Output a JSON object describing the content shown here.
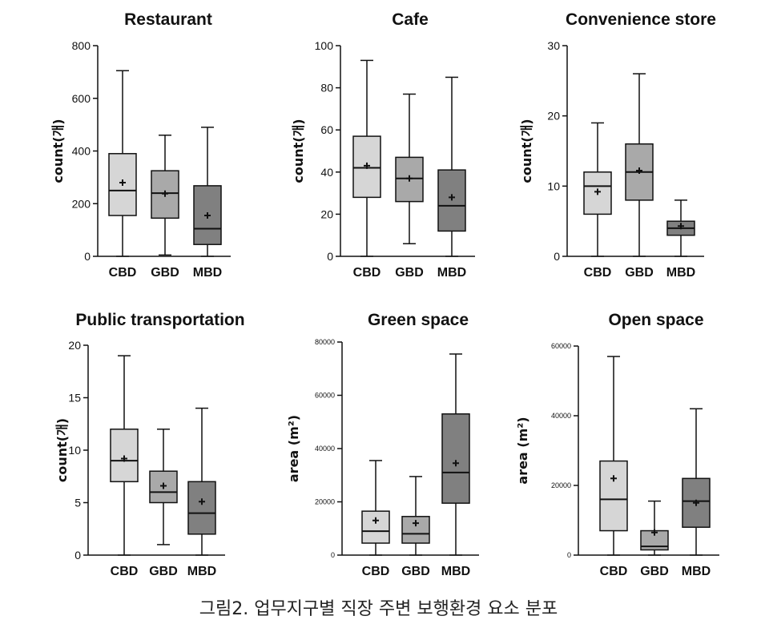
{
  "caption": "그림2. 업무지구별 직장 주변 보행환경 요소 분포",
  "colors": {
    "CBD": "#d6d6d6",
    "GBD": "#a9a9a9",
    "MBD": "#808080",
    "line": "#111111"
  },
  "chart_data": [
    {
      "type": "boxplot",
      "title": "Restaurant",
      "ylabel": "count(개)",
      "ylim": [
        0,
        800
      ],
      "yticks": [
        0,
        200,
        400,
        600,
        800
      ],
      "categories": [
        "CBD",
        "GBD",
        "MBD"
      ],
      "boxes": [
        {
          "category": "CBD",
          "min": 0,
          "q1": 155,
          "median": 250,
          "q3": 390,
          "max": 705,
          "mean": 280
        },
        {
          "category": "GBD",
          "min": 5,
          "q1": 145,
          "median": 240,
          "q3": 325,
          "max": 460,
          "mean": 238
        },
        {
          "category": "MBD",
          "min": 0,
          "q1": 45,
          "median": 105,
          "q3": 268,
          "max": 490,
          "mean": 155
        }
      ]
    },
    {
      "type": "boxplot",
      "title": "Cafe",
      "ylabel": "count(개)",
      "ylim": [
        0,
        100
      ],
      "yticks": [
        0,
        20,
        40,
        60,
        80,
        100
      ],
      "categories": [
        "CBD",
        "GBD",
        "MBD"
      ],
      "boxes": [
        {
          "category": "CBD",
          "min": 0,
          "q1": 28,
          "median": 42,
          "q3": 57,
          "max": 93,
          "mean": 43
        },
        {
          "category": "GBD",
          "min": 6,
          "q1": 26,
          "median": 37,
          "q3": 47,
          "max": 77,
          "mean": 37
        },
        {
          "category": "MBD",
          "min": 0,
          "q1": 12,
          "median": 24,
          "q3": 41,
          "max": 85,
          "mean": 28
        }
      ]
    },
    {
      "type": "boxplot",
      "title": "Convenience store",
      "ylabel": "count(개)",
      "ylim": [
        0,
        30
      ],
      "yticks": [
        0,
        10,
        20,
        30
      ],
      "categories": [
        "CBD",
        "GBD",
        "MBD"
      ],
      "boxes": [
        {
          "category": "CBD",
          "min": 0,
          "q1": 6,
          "median": 10,
          "q3": 12,
          "max": 19,
          "mean": 9.2
        },
        {
          "category": "GBD",
          "min": 0,
          "q1": 8,
          "median": 12,
          "q3": 16,
          "max": 26,
          "mean": 12.2
        },
        {
          "category": "MBD",
          "min": 0,
          "q1": 3,
          "median": 4,
          "q3": 5,
          "max": 8,
          "mean": 4.3
        }
      ]
    },
    {
      "type": "boxplot",
      "title": "Public transportation",
      "ylabel": "count(개)",
      "ylim": [
        0,
        20
      ],
      "yticks": [
        0,
        5,
        10,
        15,
        20
      ],
      "categories": [
        "CBD",
        "GBD",
        "MBD"
      ],
      "boxes": [
        {
          "category": "CBD",
          "min": 0,
          "q1": 7,
          "median": 9,
          "q3": 12,
          "max": 19,
          "mean": 9.2
        },
        {
          "category": "GBD",
          "min": 1,
          "q1": 5,
          "median": 6,
          "q3": 8,
          "max": 12,
          "mean": 6.6
        },
        {
          "category": "MBD",
          "min": 0,
          "q1": 2,
          "median": 4,
          "q3": 7,
          "max": 14,
          "mean": 5.1
        }
      ]
    },
    {
      "type": "boxplot",
      "title": "Green space",
      "ylabel": "area (m²)",
      "ylim": [
        0,
        80000
      ],
      "yticks": [
        0,
        20000,
        40000,
        60000,
        80000
      ],
      "categories": [
        "CBD",
        "GBD",
        "MBD"
      ],
      "boxes": [
        {
          "category": "CBD",
          "min": 0,
          "q1": 4500,
          "median": 9000,
          "q3": 16500,
          "max": 35500,
          "mean": 13000
        },
        {
          "category": "GBD",
          "min": 0,
          "q1": 4500,
          "median": 8000,
          "q3": 14500,
          "max": 29500,
          "mean": 12000
        },
        {
          "category": "MBD",
          "min": 0,
          "q1": 19500,
          "median": 31000,
          "q3": 53000,
          "max": 75500,
          "mean": 34500
        }
      ]
    },
    {
      "type": "boxplot",
      "title": "Open space",
      "ylabel": "area (m²)",
      "ylim": [
        0,
        60000
      ],
      "yticks": [
        0,
        20000,
        40000,
        60000
      ],
      "categories": [
        "CBD",
        "GBD",
        "MBD"
      ],
      "boxes": [
        {
          "category": "CBD",
          "min": 0,
          "q1": 7000,
          "median": 16000,
          "q3": 27000,
          "max": 57000,
          "mean": 22000
        },
        {
          "category": "GBD",
          "min": 0,
          "q1": 1500,
          "median": 2500,
          "q3": 7000,
          "max": 15500,
          "mean": 6500
        },
        {
          "category": "MBD",
          "min": 0,
          "q1": 8000,
          "median": 15500,
          "q3": 22000,
          "max": 42000,
          "mean": 15000
        }
      ]
    }
  ]
}
